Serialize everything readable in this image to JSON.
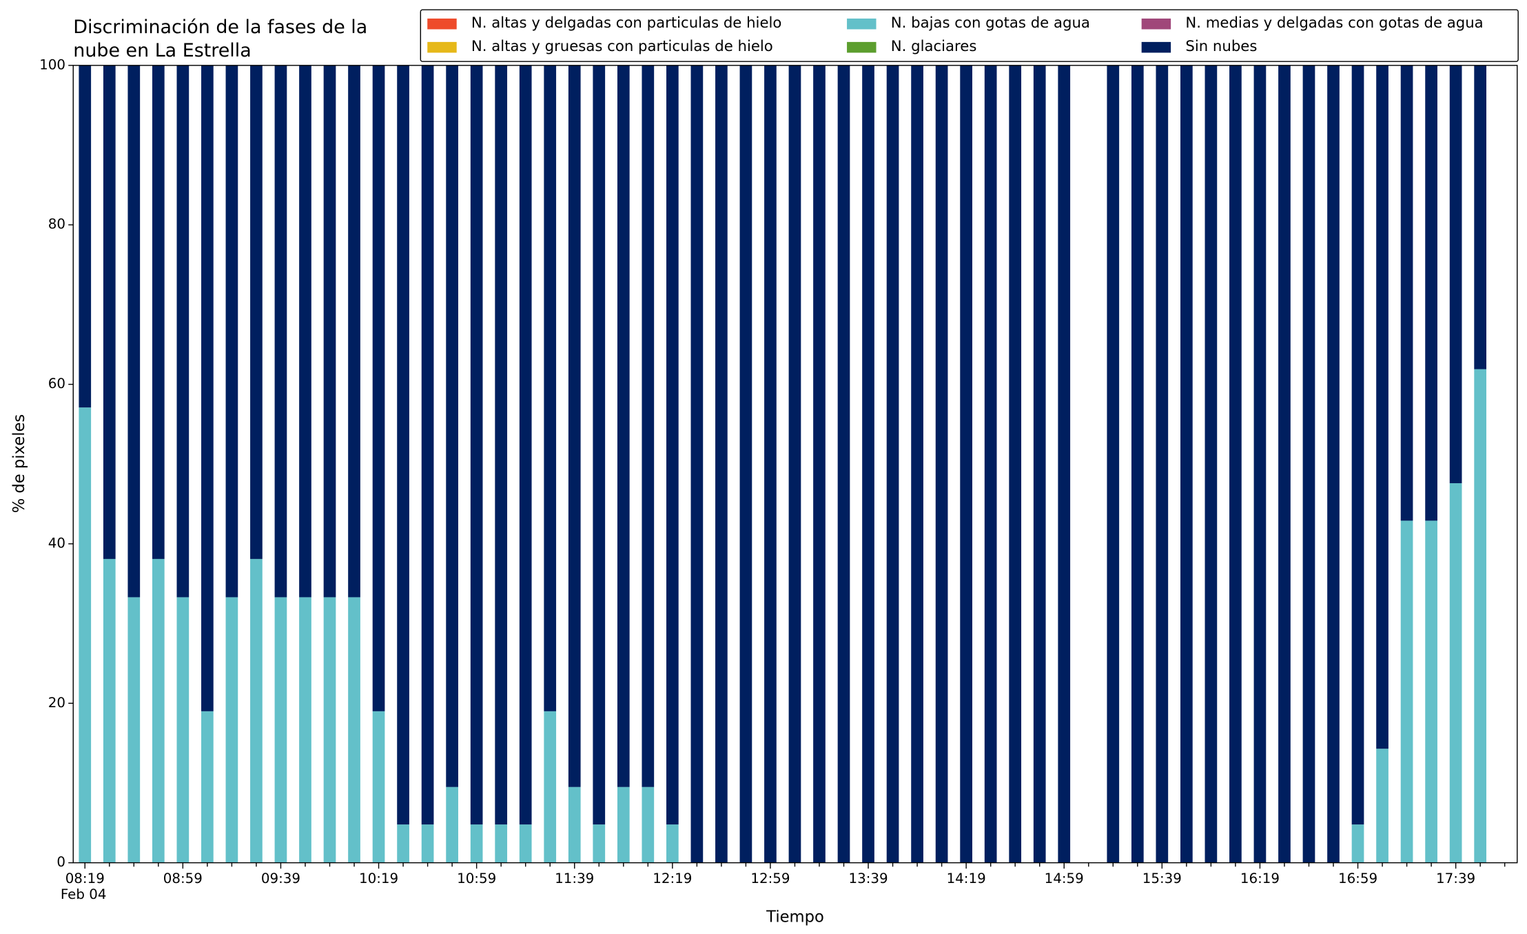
{
  "chart_data": {
    "type": "stacked_bar",
    "title": "Discriminación de la fases de la nube en La Estrella",
    "xlabel": "Tiempo",
    "ylabel": "% de pixeles",
    "date_label": "Feb 04",
    "categories": [
      "08:19",
      null,
      null,
      null,
      "08:59",
      null,
      null,
      null,
      "09:39",
      null,
      null,
      null,
      "10:19",
      null,
      null,
      null,
      "10:59",
      null,
      null,
      null,
      "11:39",
      null,
      null,
      null,
      "12:19",
      null,
      null,
      null,
      "12:59",
      null,
      null,
      null,
      "13:39",
      null,
      null,
      null,
      "14:19",
      null,
      null,
      null,
      "14:59",
      null,
      null,
      null,
      "15:39",
      null,
      null,
      null,
      "16:19",
      null,
      null,
      null,
      "16:59",
      null,
      null,
      null,
      "17:39",
      null
    ],
    "ylim": [
      0,
      100
    ],
    "yticks": [
      0,
      20,
      40,
      60,
      80,
      100
    ],
    "legend": "top-right",
    "series": [
      {
        "name": "N. altas y delgadas con particulas de hielo",
        "color": "#ee4b2b",
        "values": [
          0,
          0,
          0,
          0,
          0,
          0,
          0,
          0,
          0,
          0,
          0,
          0,
          0,
          0,
          0,
          0,
          0,
          0,
          0,
          0,
          0,
          0,
          0,
          0,
          0,
          0,
          0,
          0,
          0,
          0,
          0,
          0,
          0,
          0,
          0,
          0,
          0,
          0,
          0,
          0,
          0,
          null,
          0,
          0,
          0,
          0,
          0,
          0,
          0,
          0,
          0,
          0,
          0,
          0,
          0,
          0,
          0,
          0
        ]
      },
      {
        "name": "N. altas y gruesas con particulas de hielo",
        "color": "#e6b819",
        "values": [
          0,
          0,
          0,
          0,
          0,
          0,
          0,
          0,
          0,
          0,
          0,
          0,
          0,
          0,
          0,
          0,
          0,
          0,
          0,
          0,
          0,
          0,
          0,
          0,
          0,
          0,
          0,
          0,
          0,
          0,
          0,
          0,
          0,
          0,
          0,
          0,
          0,
          0,
          0,
          0,
          0,
          null,
          0,
          0,
          0,
          0,
          0,
          0,
          0,
          0,
          0,
          0,
          0,
          0,
          0,
          0,
          0,
          0
        ]
      },
      {
        "name": "N. bajas con gotas de agua",
        "color": "#63c0c9",
        "values": [
          57.1,
          38.1,
          33.3,
          38.1,
          33.3,
          19.0,
          33.3,
          38.1,
          33.3,
          33.3,
          33.3,
          33.3,
          19.0,
          4.8,
          4.8,
          9.5,
          4.8,
          4.8,
          4.8,
          19.0,
          9.5,
          4.8,
          9.5,
          9.5,
          4.8,
          0,
          0,
          0,
          0,
          0,
          0,
          0,
          0,
          0,
          0,
          0,
          0,
          0,
          0,
          0,
          0,
          null,
          0,
          0,
          0,
          0,
          0,
          0,
          0,
          0,
          0,
          0,
          4.8,
          14.3,
          42.9,
          42.9,
          47.6,
          61.9
        ]
      },
      {
        "name": "N. glaciares",
        "color": "#5c9e2e",
        "values": [
          0,
          0,
          0,
          0,
          0,
          0,
          0,
          0,
          0,
          0,
          0,
          0,
          0,
          0,
          0,
          0,
          0,
          0,
          0,
          0,
          0,
          0,
          0,
          0,
          0,
          0,
          0,
          0,
          0,
          0,
          0,
          0,
          0,
          0,
          0,
          0,
          0,
          0,
          0,
          0,
          0,
          null,
          0,
          0,
          0,
          0,
          0,
          0,
          0,
          0,
          0,
          0,
          0,
          0,
          0,
          0,
          0,
          0
        ]
      },
      {
        "name": "N. medias y delgadas con gotas de agua",
        "color": "#a0477a",
        "values": [
          0,
          0,
          0,
          0,
          0,
          0,
          0,
          0,
          0,
          0,
          0,
          0,
          0,
          0,
          0,
          0,
          0,
          0,
          0,
          0,
          0,
          0,
          0,
          0,
          0,
          0,
          0,
          0,
          0,
          0,
          0,
          0,
          0,
          0,
          0,
          0,
          0,
          0,
          0,
          0,
          0,
          null,
          0,
          0,
          0,
          0,
          0,
          0,
          0,
          0,
          0,
          0,
          0,
          0,
          0,
          0,
          0,
          0
        ]
      },
      {
        "name": "Sin nubes",
        "color": "#001f5f",
        "values": [
          42.9,
          61.9,
          66.7,
          61.9,
          66.7,
          81.0,
          66.7,
          61.9,
          66.7,
          66.7,
          66.7,
          66.7,
          81.0,
          95.2,
          95.2,
          90.5,
          95.2,
          95.2,
          95.2,
          81.0,
          90.5,
          95.2,
          90.5,
          90.5,
          95.2,
          100,
          100,
          100,
          100,
          100,
          100,
          100,
          100,
          100,
          100,
          100,
          100,
          100,
          100,
          100,
          100,
          null,
          100,
          100,
          100,
          100,
          100,
          100,
          100,
          100,
          100,
          100,
          95.2,
          85.7,
          57.1,
          57.1,
          52.4,
          38.1
        ]
      }
    ]
  }
}
